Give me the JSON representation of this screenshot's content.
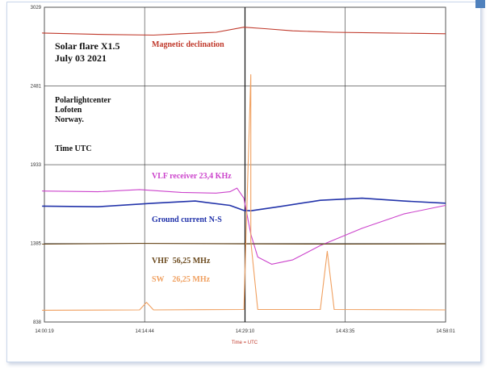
{
  "chart_data": {
    "type": "line",
    "title_lines": [
      "Solar flare X1.5",
      "July 03 2021"
    ],
    "station_lines": [
      "Polarlightcenter",
      "Lofoten",
      "Norway."
    ],
    "time_label": "Time UTC",
    "xlabel": "Time = UTC",
    "x_ticks": [
      "14:00:19",
      "14:14:44",
      "14:29:10",
      "14:43:35",
      "14:58:01"
    ],
    "y_ticks": [
      838,
      1385,
      1933,
      2481,
      3029
    ],
    "ylim": [
      838,
      3029
    ],
    "grid": true,
    "series": [
      {
        "name": "Magnetic declination",
        "color": "#c0392b",
        "x": [
          "14:00",
          "14:08",
          "14:16",
          "14:20",
          "14:25",
          "14:29",
          "14:32",
          "14:36",
          "14:42",
          "14:50",
          "14:58"
        ],
        "values": [
          2850,
          2840,
          2835,
          2845,
          2855,
          2890,
          2880,
          2865,
          2855,
          2850,
          2845
        ]
      },
      {
        "name": "VLF receiver 23,4 KHz",
        "color": "#cc44cc",
        "x": [
          "14:00",
          "14:08",
          "14:14",
          "14:20",
          "14:25",
          "14:27",
          "14:28",
          "14:29",
          "14:30",
          "14:31",
          "14:33",
          "14:36",
          "14:40",
          "14:46",
          "14:52",
          "14:58"
        ],
        "values": [
          1750,
          1745,
          1760,
          1740,
          1735,
          1745,
          1770,
          1700,
          1450,
          1290,
          1240,
          1270,
          1370,
          1490,
          1590,
          1650
        ]
      },
      {
        "name": "Ground current N-S",
        "color": "#2233aa",
        "x": [
          "14:00",
          "14:08",
          "14:16",
          "14:22",
          "14:27",
          "14:29",
          "14:30",
          "14:34",
          "14:40",
          "14:46",
          "14:52",
          "14:58"
        ],
        "values": [
          1645,
          1640,
          1665,
          1680,
          1650,
          1615,
          1612,
          1640,
          1685,
          1700,
          1680,
          1665
        ]
      },
      {
        "name": "VHF  56,25 MHz",
        "color": "#6b4a1e",
        "x": [
          "14:00",
          "14:14",
          "14:29",
          "14:43",
          "14:58"
        ],
        "values": [
          1380,
          1385,
          1382,
          1380,
          1382
        ]
      },
      {
        "name": "SW    26,25 MHz",
        "color": "#f0a060",
        "x": [
          "14:00",
          "14:14",
          "14:15",
          "14:16",
          "14:29",
          "14:30",
          "14:30",
          "14:31",
          "14:40",
          "14:41",
          "14:42",
          "14:58"
        ],
        "values": [
          920,
          922,
          975,
          922,
          925,
          2560,
          1400,
          925,
          925,
          1330,
          925,
          922
        ]
      }
    ]
  }
}
